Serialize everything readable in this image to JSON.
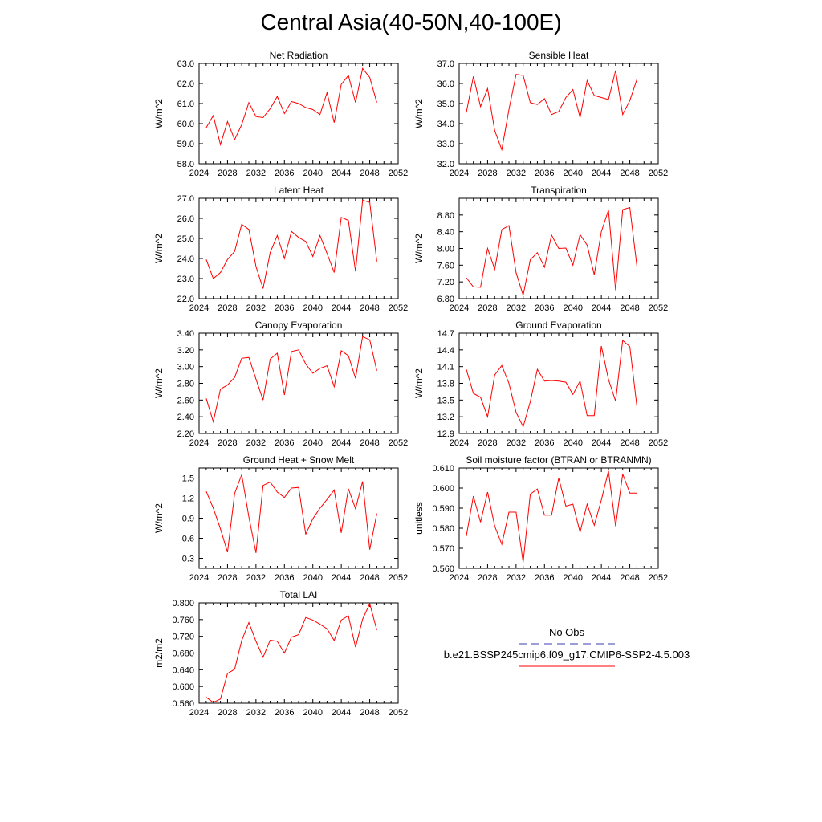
{
  "title": "Central Asia(40-50N,40-100E)",
  "legend": {
    "obs_label": "No Obs",
    "obs_color": "#3b3bb0",
    "model_label": "b.e21.BSSP245cmip6.f09_g17.CMIP6-SSP2-4.5.003",
    "model_color": "#ff0000"
  },
  "chart_data": [
    {
      "type": "line",
      "title": "Net Radiation",
      "ylabel": "W/m^2",
      "xlim": [
        2024,
        2052
      ],
      "ylim": [
        58.0,
        63.0
      ],
      "xticks": [
        "2024",
        "2028",
        "2032",
        "2036",
        "2040",
        "2044",
        "2048",
        "2052"
      ],
      "yticks": [
        "58.0",
        "59.0",
        "60.0",
        "61.0",
        "62.0",
        "63.0"
      ],
      "x": [
        2025,
        2026,
        2027,
        2028,
        2029,
        2030,
        2031,
        2032,
        2033,
        2034,
        2035,
        2036,
        2037,
        2038,
        2039,
        2040,
        2041,
        2042,
        2043,
        2044,
        2045,
        2046,
        2047,
        2048,
        2049
      ],
      "series": [
        {
          "values": [
            59.8,
            60.4,
            58.95,
            60.1,
            59.2,
            59.95,
            61.05,
            60.35,
            60.3,
            60.75,
            61.35,
            60.5,
            61.1,
            61.0,
            60.8,
            60.7,
            60.45,
            61.55,
            60.05,
            61.95,
            62.4,
            61.05,
            62.75,
            62.3,
            61.05
          ]
        }
      ]
    },
    {
      "type": "line",
      "title": "Sensible Heat",
      "ylabel": "W/m^2",
      "xlim": [
        2024,
        2052
      ],
      "ylim": [
        32.0,
        37.0
      ],
      "xticks": [
        "2024",
        "2028",
        "2032",
        "2036",
        "2040",
        "2044",
        "2048",
        "2052"
      ],
      "yticks": [
        "32.0",
        "33.0",
        "34.0",
        "35.0",
        "36.0",
        "37.0"
      ],
      "x": [
        2025,
        2026,
        2027,
        2028,
        2029,
        2030,
        2031,
        2032,
        2033,
        2034,
        2035,
        2036,
        2037,
        2038,
        2039,
        2040,
        2041,
        2042,
        2043,
        2044,
        2045,
        2046,
        2047,
        2048,
        2049
      ],
      "series": [
        {
          "values": [
            34.55,
            36.35,
            34.85,
            35.75,
            33.65,
            32.7,
            34.7,
            36.45,
            36.4,
            35.05,
            34.95,
            35.25,
            34.45,
            34.6,
            35.3,
            35.7,
            34.3,
            36.15,
            35.4,
            35.3,
            35.2,
            36.65,
            34.45,
            35.15,
            36.2
          ]
        }
      ]
    },
    {
      "type": "line",
      "title": "Latent Heat",
      "ylabel": "W/m^2",
      "xlim": [
        2024,
        2052
      ],
      "ylim": [
        22.0,
        27.0
      ],
      "xticks": [
        "2024",
        "2028",
        "2032",
        "2036",
        "2040",
        "2044",
        "2048",
        "2052"
      ],
      "yticks": [
        "22.0",
        "23.0",
        "24.0",
        "25.0",
        "26.0",
        "27.0"
      ],
      "x": [
        2025,
        2026,
        2027,
        2028,
        2029,
        2030,
        2031,
        2032,
        2033,
        2034,
        2035,
        2036,
        2037,
        2038,
        2039,
        2040,
        2041,
        2042,
        2043,
        2044,
        2045,
        2046,
        2047,
        2048,
        2049
      ],
      "series": [
        {
          "values": [
            23.95,
            23.0,
            23.3,
            23.95,
            24.35,
            25.7,
            25.45,
            23.6,
            22.5,
            24.3,
            25.15,
            24.0,
            25.35,
            25.05,
            24.85,
            24.1,
            25.15,
            24.25,
            23.3,
            26.05,
            25.9,
            23.35,
            26.9,
            26.8,
            23.85
          ]
        }
      ]
    },
    {
      "type": "line",
      "title": "Transpiration",
      "ylabel": "W/m^2",
      "xlim": [
        2024,
        2052
      ],
      "ylim": [
        6.8,
        9.2
      ],
      "xticks": [
        "2024",
        "2028",
        "2032",
        "2036",
        "2040",
        "2044",
        "2048",
        "2052"
      ],
      "yticks": [
        "6.80",
        "7.20",
        "7.60",
        "8.00",
        "8.40",
        "8.80"
      ],
      "x": [
        2025,
        2026,
        2027,
        2028,
        2029,
        2030,
        2031,
        2032,
        2033,
        2034,
        2035,
        2036,
        2037,
        2038,
        2039,
        2040,
        2041,
        2042,
        2043,
        2044,
        2045,
        2046,
        2047,
        2048,
        2049
      ],
      "series": [
        {
          "values": [
            7.3,
            7.08,
            7.07,
            8.0,
            7.5,
            8.45,
            8.55,
            7.42,
            6.88,
            7.73,
            7.9,
            7.55,
            8.32,
            8.0,
            8.01,
            7.6,
            8.33,
            8.08,
            7.37,
            8.4,
            8.92,
            7.0,
            8.93,
            8.98,
            7.58
          ]
        }
      ]
    },
    {
      "type": "line",
      "title": "Canopy Evaporation",
      "ylabel": "W/m^2",
      "xlim": [
        2024,
        2052
      ],
      "ylim": [
        2.2,
        3.4
      ],
      "xticks": [
        "2024",
        "2028",
        "2032",
        "2036",
        "2040",
        "2044",
        "2048",
        "2052"
      ],
      "yticks": [
        "2.20",
        "2.40",
        "2.60",
        "2.80",
        "3.00",
        "3.20",
        "3.40"
      ],
      "x": [
        2025,
        2026,
        2027,
        2028,
        2029,
        2030,
        2031,
        2032,
        2033,
        2034,
        2035,
        2036,
        2037,
        2038,
        2039,
        2040,
        2041,
        2042,
        2043,
        2044,
        2045,
        2046,
        2047,
        2048,
        2049
      ],
      "series": [
        {
          "values": [
            2.62,
            2.34,
            2.73,
            2.78,
            2.87,
            3.1,
            3.11,
            2.85,
            2.6,
            3.09,
            3.16,
            2.66,
            3.18,
            3.2,
            3.03,
            2.92,
            2.98,
            3.01,
            2.76,
            3.19,
            3.13,
            2.86,
            3.36,
            3.32,
            2.95
          ]
        }
      ]
    },
    {
      "type": "line",
      "title": "Ground Evaporation",
      "ylabel": "W/m^2",
      "xlim": [
        2024,
        2052
      ],
      "ylim": [
        12.9,
        14.7
      ],
      "xticks": [
        "2024",
        "2028",
        "2032",
        "2036",
        "2040",
        "2044",
        "2048",
        "2052"
      ],
      "yticks": [
        "12.9",
        "13.2",
        "13.5",
        "13.8",
        "14.1",
        "14.4",
        "14.7"
      ],
      "x": [
        2025,
        2026,
        2027,
        2028,
        2029,
        2030,
        2031,
        2032,
        2033,
        2034,
        2035,
        2036,
        2037,
        2038,
        2039,
        2040,
        2041,
        2042,
        2043,
        2044,
        2045,
        2046,
        2047,
        2048,
        2049
      ],
      "series": [
        {
          "values": [
            14.05,
            13.62,
            13.55,
            13.2,
            13.95,
            14.12,
            13.8,
            13.28,
            13.02,
            13.47,
            14.05,
            13.84,
            13.85,
            13.84,
            13.82,
            13.6,
            13.84,
            13.22,
            13.22,
            14.47,
            13.87,
            13.48,
            14.57,
            14.46,
            13.39
          ]
        }
      ]
    },
    {
      "type": "line",
      "title": "Ground Heat + Snow Melt",
      "ylabel": "W/m^2",
      "xlim": [
        2024,
        2052
      ],
      "ylim": [
        0.15,
        1.65
      ],
      "xticks": [
        "2024",
        "2028",
        "2032",
        "2036",
        "2040",
        "2044",
        "2048",
        "2052"
      ],
      "yticks": [
        "0.3",
        "0.6",
        "0.9",
        "1.2",
        "1.5"
      ],
      "x": [
        2025,
        2026,
        2027,
        2028,
        2029,
        2030,
        2031,
        2032,
        2033,
        2034,
        2035,
        2036,
        2037,
        2038,
        2039,
        2040,
        2041,
        2042,
        2043,
        2044,
        2045,
        2046,
        2047,
        2048,
        2049
      ],
      "series": [
        {
          "values": [
            1.3,
            1.05,
            0.74,
            0.39,
            1.27,
            1.55,
            0.92,
            0.38,
            1.39,
            1.44,
            1.29,
            1.21,
            1.35,
            1.36,
            0.66,
            0.89,
            1.05,
            1.18,
            1.32,
            0.68,
            1.34,
            1.04,
            1.45,
            0.43,
            0.97
          ]
        }
      ]
    },
    {
      "type": "line",
      "title": "Soil moisture factor (BTRAN or BTRANMN)",
      "ylabel": "unitless",
      "xlim": [
        2024,
        2052
      ],
      "ylim": [
        0.56,
        0.61
      ],
      "xticks": [
        "2024",
        "2028",
        "2032",
        "2036",
        "2040",
        "2044",
        "2048",
        "2052"
      ],
      "yticks": [
        "0.560",
        "0.570",
        "0.580",
        "0.590",
        "0.600",
        "0.610"
      ],
      "x": [
        2025,
        2026,
        2027,
        2028,
        2029,
        2030,
        2031,
        2032,
        2033,
        2034,
        2035,
        2036,
        2037,
        2038,
        2039,
        2040,
        2041,
        2042,
        2043,
        2044,
        2045,
        2046,
        2047,
        2048,
        2049
      ],
      "series": [
        {
          "values": [
            0.576,
            0.596,
            0.583,
            0.598,
            0.581,
            0.572,
            0.588,
            0.588,
            0.563,
            0.597,
            0.5995,
            0.5865,
            0.5865,
            0.605,
            0.591,
            0.592,
            0.578,
            0.592,
            0.5815,
            0.594,
            0.6085,
            0.581,
            0.607,
            0.5975,
            0.5975
          ]
        }
      ]
    },
    {
      "type": "line",
      "title": "Total LAI",
      "ylabel": "m2/m2",
      "xlim": [
        2024,
        2052
      ],
      "ylim": [
        0.56,
        0.8
      ],
      "xticks": [
        "2024",
        "2028",
        "2032",
        "2036",
        "2040",
        "2044",
        "2048",
        "2052"
      ],
      "yticks": [
        "0.560",
        "0.600",
        "0.640",
        "0.680",
        "0.720",
        "0.760",
        "0.800"
      ],
      "x": [
        2025,
        2026,
        2027,
        2028,
        2029,
        2030,
        2031,
        2032,
        2033,
        2034,
        2035,
        2036,
        2037,
        2038,
        2039,
        2040,
        2041,
        2042,
        2043,
        2044,
        2045,
        2046,
        2047,
        2048,
        2049
      ],
      "series": [
        {
          "values": [
            0.574,
            0.562,
            0.57,
            0.631,
            0.641,
            0.71,
            0.753,
            0.708,
            0.67,
            0.711,
            0.708,
            0.68,
            0.718,
            0.724,
            0.765,
            0.759,
            0.749,
            0.738,
            0.71,
            0.759,
            0.769,
            0.694,
            0.761,
            0.798,
            0.735
          ]
        }
      ]
    }
  ]
}
